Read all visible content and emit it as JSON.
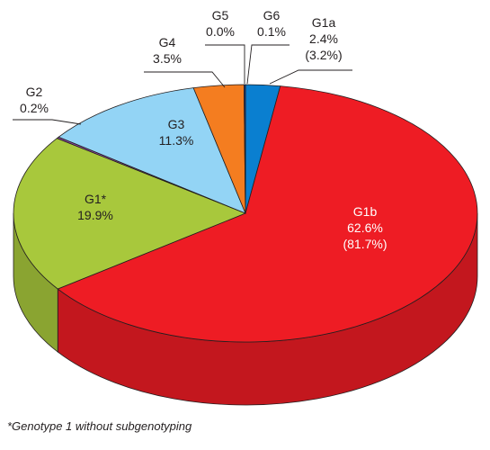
{
  "chart_data": {
    "type": "pie",
    "style": "3d",
    "title": "",
    "slices": [
      {
        "label": "G1a",
        "value": 2.4,
        "value_text": "2.4%",
        "extra_text": "(3.2%)",
        "color": "#0a7fd0"
      },
      {
        "label": "G1b",
        "value": 62.6,
        "value_text": "62.6%",
        "extra_text": "(81.7%)",
        "color": "#ee1c24"
      },
      {
        "label": "G1*",
        "value": 19.9,
        "value_text": "19.9%",
        "extra_text": "",
        "color": "#a8c83c"
      },
      {
        "label": "G2",
        "value": 0.2,
        "value_text": "0.2%",
        "extra_text": "",
        "color": "#8a4aa0"
      },
      {
        "label": "G3",
        "value": 11.3,
        "value_text": "11.3%",
        "extra_text": "",
        "color": "#93d4f5"
      },
      {
        "label": "G4",
        "value": 3.5,
        "value_text": "3.5%",
        "extra_text": "",
        "color": "#f47d20"
      },
      {
        "label": "G5",
        "value": 0.0,
        "value_text": "0.0%",
        "extra_text": "",
        "color": "#f5e600"
      },
      {
        "label": "G6",
        "value": 0.1,
        "value_text": "0.1%",
        "extra_text": "",
        "color": "#1a3c8c"
      }
    ],
    "footnote": "*Genotype 1 without subgenotyping"
  }
}
